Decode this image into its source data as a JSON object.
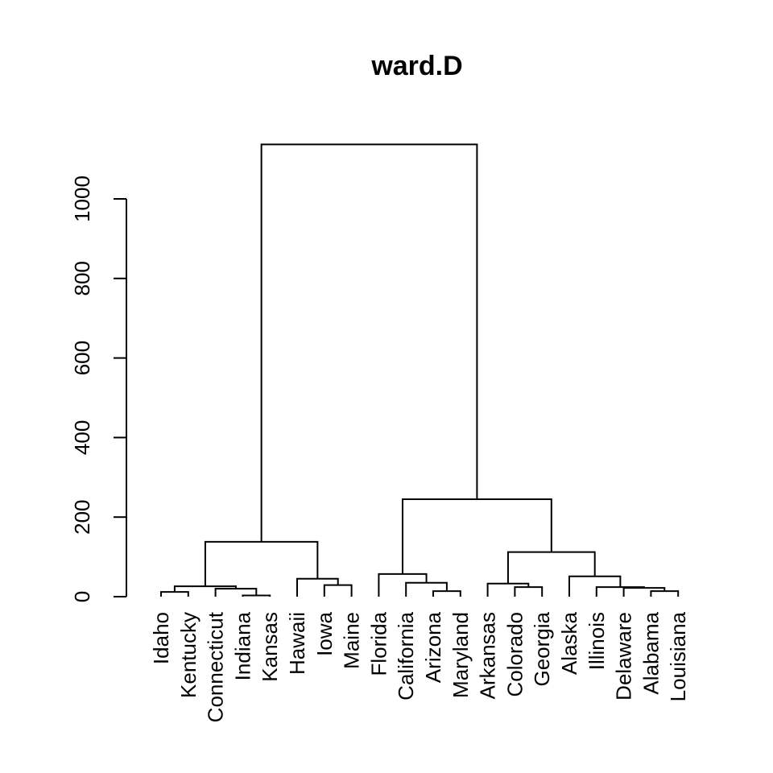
{
  "chart_data": {
    "type": "dendrogram",
    "title": "ward.D",
    "xlabel": "",
    "ylabel": "",
    "ylim": [
      0,
      1000
    ],
    "yticks": [
      "0",
      "200",
      "400",
      "600",
      "800",
      "1000"
    ],
    "ytick_values": [
      0,
      200,
      400,
      600,
      800,
      1000
    ],
    "leaves": [
      "Idaho",
      "Kentucky",
      "Connecticut",
      "Indiana",
      "Kansas",
      "Hawaii",
      "Iowa",
      "Maine",
      "Florida",
      "California",
      "Arizona",
      "Maryland",
      "Arkansas",
      "Colorado",
      "Georgia",
      "Alaska",
      "Illinois",
      "Delaware",
      "Alabama",
      "Louisiana"
    ],
    "leaf_height": 0,
    "merges": [
      {
        "left": "L0",
        "right": "L1",
        "height": 12
      },
      {
        "left": "L3",
        "right": "L4",
        "height": 3
      },
      {
        "left": "L2",
        "right": "M1",
        "height": 20
      },
      {
        "left": "M0",
        "right": "M2",
        "height": 26
      },
      {
        "left": "L6",
        "right": "L7",
        "height": 29
      },
      {
        "left": "L5",
        "right": "M4",
        "height": 45
      },
      {
        "left": "M3",
        "right": "M5",
        "height": 138
      },
      {
        "left": "L10",
        "right": "L11",
        "height": 14
      },
      {
        "left": "L9",
        "right": "M7",
        "height": 35
      },
      {
        "left": "L8",
        "right": "M8",
        "height": 57
      },
      {
        "left": "L13",
        "right": "L14",
        "height": 24
      },
      {
        "left": "L12",
        "right": "M10",
        "height": 33
      },
      {
        "left": "L18",
        "right": "L19",
        "height": 14
      },
      {
        "left": "L17",
        "right": "M12",
        "height": 22
      },
      {
        "left": "L16",
        "right": "M13",
        "height": 24
      },
      {
        "left": "L15",
        "right": "M14",
        "height": 51
      },
      {
        "left": "M11",
        "right": "M15",
        "height": 112
      },
      {
        "left": "M9",
        "right": "M16",
        "height": 245
      },
      {
        "left": "M6",
        "right": "M17",
        "height": 1137
      }
    ],
    "grid": false,
    "legend": "none"
  }
}
